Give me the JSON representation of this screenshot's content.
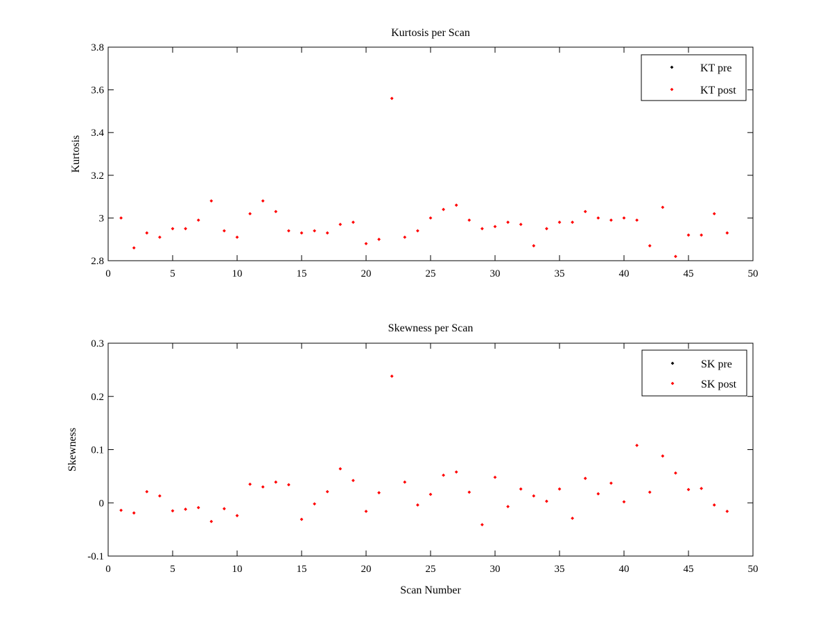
{
  "chart_data": [
    {
      "type": "scatter",
      "title": "Kurtosis per Scan",
      "xlabel": "",
      "ylabel": "Kurtosis",
      "xlim": [
        0,
        50
      ],
      "ylim": [
        2.8,
        3.8
      ],
      "xticks": [
        0,
        5,
        10,
        15,
        20,
        25,
        30,
        35,
        40,
        45,
        50
      ],
      "yticks": [
        2.8,
        3.0,
        3.2,
        3.4,
        3.6,
        3.8
      ],
      "xtick_labels": [
        "0",
        "5",
        "10",
        "15",
        "20",
        "25",
        "30",
        "35",
        "40",
        "45",
        "50"
      ],
      "ytick_labels": [
        "2.8",
        "3",
        "3.2",
        "3.4",
        "3.6",
        "3.8"
      ],
      "grid": false,
      "legend_position": "top-right",
      "series": [
        {
          "name": "KT pre",
          "color": "#000000",
          "x": [],
          "values": []
        },
        {
          "name": "KT post",
          "color": "#ff0000",
          "x": [
            1,
            2,
            3,
            4,
            5,
            6,
            7,
            8,
            9,
            10,
            11,
            12,
            13,
            14,
            15,
            16,
            17,
            18,
            19,
            20,
            21,
            22,
            23,
            24,
            25,
            26,
            27,
            28,
            29,
            30,
            31,
            32,
            33,
            34,
            35,
            36,
            37,
            38,
            39,
            40,
            41,
            42,
            43,
            44,
            45,
            46,
            47,
            48
          ],
          "values": [
            3.0,
            2.86,
            2.93,
            2.91,
            2.95,
            2.95,
            2.99,
            3.08,
            2.94,
            2.91,
            3.02,
            3.08,
            3.03,
            2.94,
            2.93,
            2.94,
            2.93,
            2.97,
            2.98,
            2.88,
            2.9,
            3.56,
            2.91,
            2.94,
            3.0,
            3.04,
            3.06,
            2.99,
            2.95,
            2.96,
            2.98,
            2.97,
            2.87,
            2.95,
            2.98,
            2.98,
            3.03,
            3.0,
            2.99,
            3.0,
            2.99,
            2.87,
            3.05,
            2.82,
            2.92,
            2.92,
            3.02,
            2.93
          ]
        }
      ]
    },
    {
      "type": "scatter",
      "title": "Skewness per Scan",
      "xlabel": "Scan Number",
      "ylabel": "Skewness",
      "xlim": [
        0,
        50
      ],
      "ylim": [
        -0.1,
        0.3
      ],
      "xticks": [
        0,
        5,
        10,
        15,
        20,
        25,
        30,
        35,
        40,
        45,
        50
      ],
      "yticks": [
        -0.1,
        0,
        0.1,
        0.2,
        0.3
      ],
      "xtick_labels": [
        "0",
        "5",
        "10",
        "15",
        "20",
        "25",
        "30",
        "35",
        "40",
        "45",
        "50"
      ],
      "ytick_labels": [
        "-0.1",
        "0",
        "0.1",
        "0.2",
        "0.3"
      ],
      "grid": false,
      "legend_position": "top-right",
      "series": [
        {
          "name": "SK pre",
          "color": "#000000",
          "x": [],
          "values": []
        },
        {
          "name": "SK post",
          "color": "#ff0000",
          "x": [
            1,
            2,
            3,
            4,
            5,
            6,
            7,
            8,
            9,
            10,
            11,
            12,
            13,
            14,
            15,
            16,
            17,
            18,
            19,
            20,
            21,
            22,
            23,
            24,
            25,
            26,
            27,
            28,
            29,
            30,
            31,
            32,
            33,
            34,
            35,
            36,
            37,
            38,
            39,
            40,
            41,
            42,
            43,
            44,
            45,
            46,
            47,
            48
          ],
          "values": [
            -0.014,
            -0.019,
            0.021,
            0.013,
            -0.015,
            -0.012,
            -0.009,
            -0.035,
            -0.011,
            -0.024,
            0.035,
            0.03,
            0.039,
            0.034,
            -0.031,
            -0.002,
            0.021,
            0.064,
            0.042,
            -0.016,
            0.019,
            0.238,
            0.039,
            -0.004,
            0.016,
            0.052,
            0.058,
            0.02,
            -0.041,
            0.048,
            -0.007,
            0.026,
            0.013,
            0.003,
            0.026,
            -0.029,
            0.046,
            0.017,
            0.037,
            0.002,
            0.108,
            0.02,
            0.088,
            0.056,
            0.025,
            0.027,
            -0.004,
            -0.016
          ]
        }
      ]
    }
  ]
}
